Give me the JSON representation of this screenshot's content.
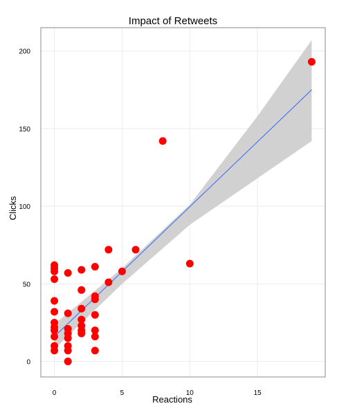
{
  "chart_data": {
    "type": "scatter",
    "title": "Impact of Retweets",
    "xlabel": "Reactions",
    "ylabel": "Clicks",
    "xlim": [
      -1,
      20
    ],
    "ylim": [
      -10,
      215
    ],
    "x_ticks": [
      0,
      5,
      10,
      15
    ],
    "y_ticks": [
      0,
      50,
      100,
      150,
      200
    ],
    "grid": true,
    "point_color": "#ff0000",
    "fit_line_color": "#3366ff",
    "confidence_band_color": "#cccccc",
    "points": [
      {
        "x": 0,
        "y": 62
      },
      {
        "x": 0,
        "y": 60
      },
      {
        "x": 0,
        "y": 58
      },
      {
        "x": 0,
        "y": 53
      },
      {
        "x": 0,
        "y": 39
      },
      {
        "x": 0,
        "y": 32
      },
      {
        "x": 0,
        "y": 25
      },
      {
        "x": 0,
        "y": 22
      },
      {
        "x": 0,
        "y": 20
      },
      {
        "x": 0,
        "y": 16
      },
      {
        "x": 0,
        "y": 10
      },
      {
        "x": 0,
        "y": 7
      },
      {
        "x": 1,
        "y": 57
      },
      {
        "x": 1,
        "y": 31
      },
      {
        "x": 1,
        "y": 21
      },
      {
        "x": 1,
        "y": 18
      },
      {
        "x": 1,
        "y": 15
      },
      {
        "x": 1,
        "y": 10
      },
      {
        "x": 1,
        "y": 7
      },
      {
        "x": 1,
        "y": 0
      },
      {
        "x": 2,
        "y": 59
      },
      {
        "x": 2,
        "y": 46
      },
      {
        "x": 2,
        "y": 34
      },
      {
        "x": 2,
        "y": 27
      },
      {
        "x": 2,
        "y": 23
      },
      {
        "x": 2,
        "y": 20
      },
      {
        "x": 2,
        "y": 18
      },
      {
        "x": 3,
        "y": 61
      },
      {
        "x": 3,
        "y": 42
      },
      {
        "x": 3,
        "y": 40
      },
      {
        "x": 3,
        "y": 30
      },
      {
        "x": 3,
        "y": 20
      },
      {
        "x": 3,
        "y": 16
      },
      {
        "x": 3,
        "y": 7
      },
      {
        "x": 4,
        "y": 72
      },
      {
        "x": 4,
        "y": 51
      },
      {
        "x": 5,
        "y": 58
      },
      {
        "x": 6,
        "y": 72
      },
      {
        "x": 8,
        "y": 142
      },
      {
        "x": 10,
        "y": 63
      },
      {
        "x": 19,
        "y": 193
      }
    ],
    "fit_line": {
      "x": [
        0,
        19
      ],
      "y": [
        16,
        175
      ]
    },
    "confidence_band": {
      "x": [
        0,
        5,
        10,
        15,
        19
      ],
      "lower": [
        8,
        50,
        88,
        118,
        142
      ],
      "upper": [
        24,
        60,
        101,
        158,
        207
      ]
    }
  }
}
